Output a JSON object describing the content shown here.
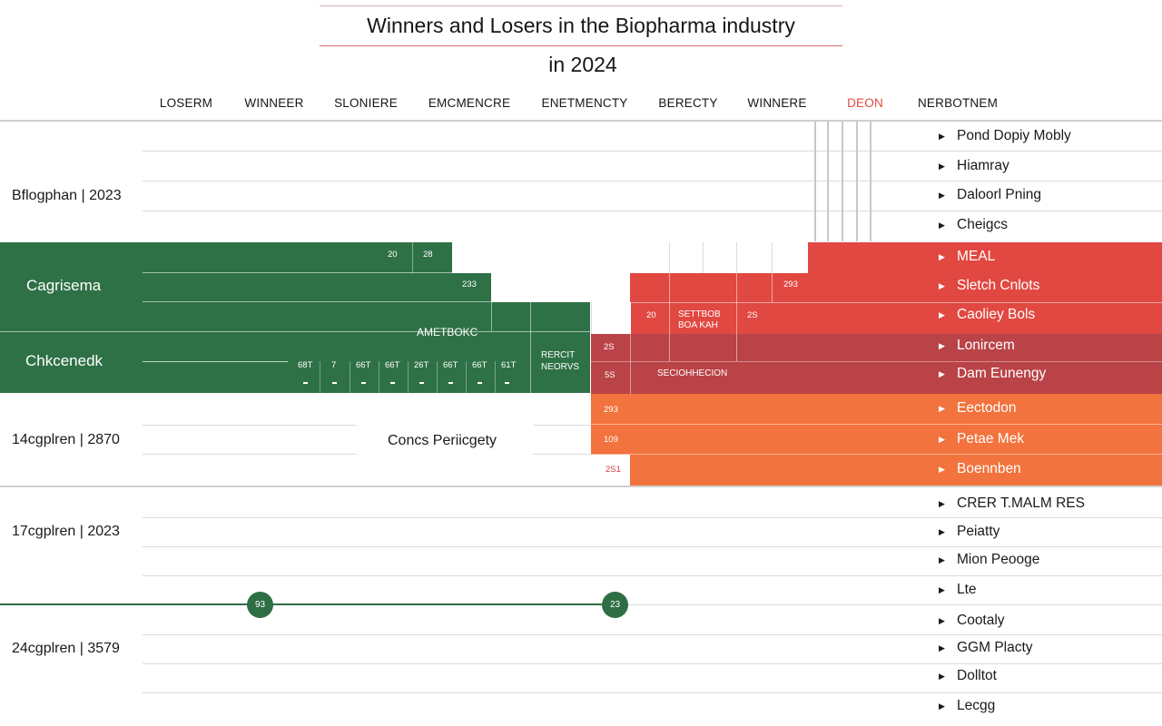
{
  "title": "Winners and Losers in the Biopharma industry",
  "title_year": "in 2024",
  "columns": [
    "LOSERM",
    "WINNEER",
    "SLONIERE",
    "EMCMENCRE",
    "ENETMENCTY",
    "BERECTY",
    "WINNERE",
    "DEON",
    "NERBOTNEM"
  ],
  "highlight_column": "DEON",
  "colors": {
    "winner_green": "#2f7146",
    "loser_red": "#e14841",
    "dark_red": "#b94347",
    "orange": "#f2733d",
    "title_rule": "#d96b6b"
  },
  "rows": {
    "r1": "Bflogphan | 2023",
    "r2": "Cagrisema",
    "r3": "Chkcenedk",
    "r4": "14cgplren | 2870",
    "r5": "17cgplren | 2023",
    "r6": "24cgplren | 3579"
  },
  "legend": [
    "Pond Dopiy Mobly",
    "Hiamray",
    "Daloorl Pning",
    "Cheigcs",
    "MEAL",
    "Sletch Cnlots",
    "Caoliey Bols",
    "Lonircem",
    "Dam Eunengy",
    "Eectodon",
    "Petae Mek",
    "Boennben",
    "CRER T.MALM RES",
    "Peiatty",
    "Mion Peooge",
    "Lte",
    "Cootaly",
    "GGM Placty",
    "Dolltot",
    "Lecgg"
  ],
  "cell_labels": {
    "g1a": "20",
    "g1b": "28",
    "g2": "233",
    "ametbokc": "AMETBOKC",
    "nums": [
      "68T",
      "7",
      "66T",
      "66T",
      "26T",
      "66T",
      "66T",
      "61T"
    ],
    "rercit": "RERCIT",
    "neorvs": "NEORVS",
    "r20": "20",
    "settbob": "SETTBOB",
    "boakah": "BOA KAH",
    "r2s": "2S",
    "r293": "293",
    "x2s": "2S",
    "x5s": "5S",
    "sectionhecion": "SECIOHHECION",
    "o1": "293",
    "o2": "109",
    "o3": "2S1",
    "concs": "Concs Periicgety"
  },
  "nodes": [
    "93",
    "23"
  ],
  "chart_data": {
    "type": "table",
    "title": "Winners and Losers in the Biopharma industry in 2024",
    "columns": [
      "LOSERM",
      "WINNEER",
      "SLONIERE",
      "EMCMENCRE",
      "ENETMENCTY",
      "BERECTY",
      "WINNERE",
      "DEON",
      "NERBOTNEM"
    ],
    "row_labels": [
      "Bflogphan | 2023",
      "Cagrisema",
      "Chkcenedk",
      "14cgplren | 2870",
      "17cgplren | 2023",
      "24cgplren | 3579"
    ],
    "legend_position": "right",
    "grid": true
  }
}
